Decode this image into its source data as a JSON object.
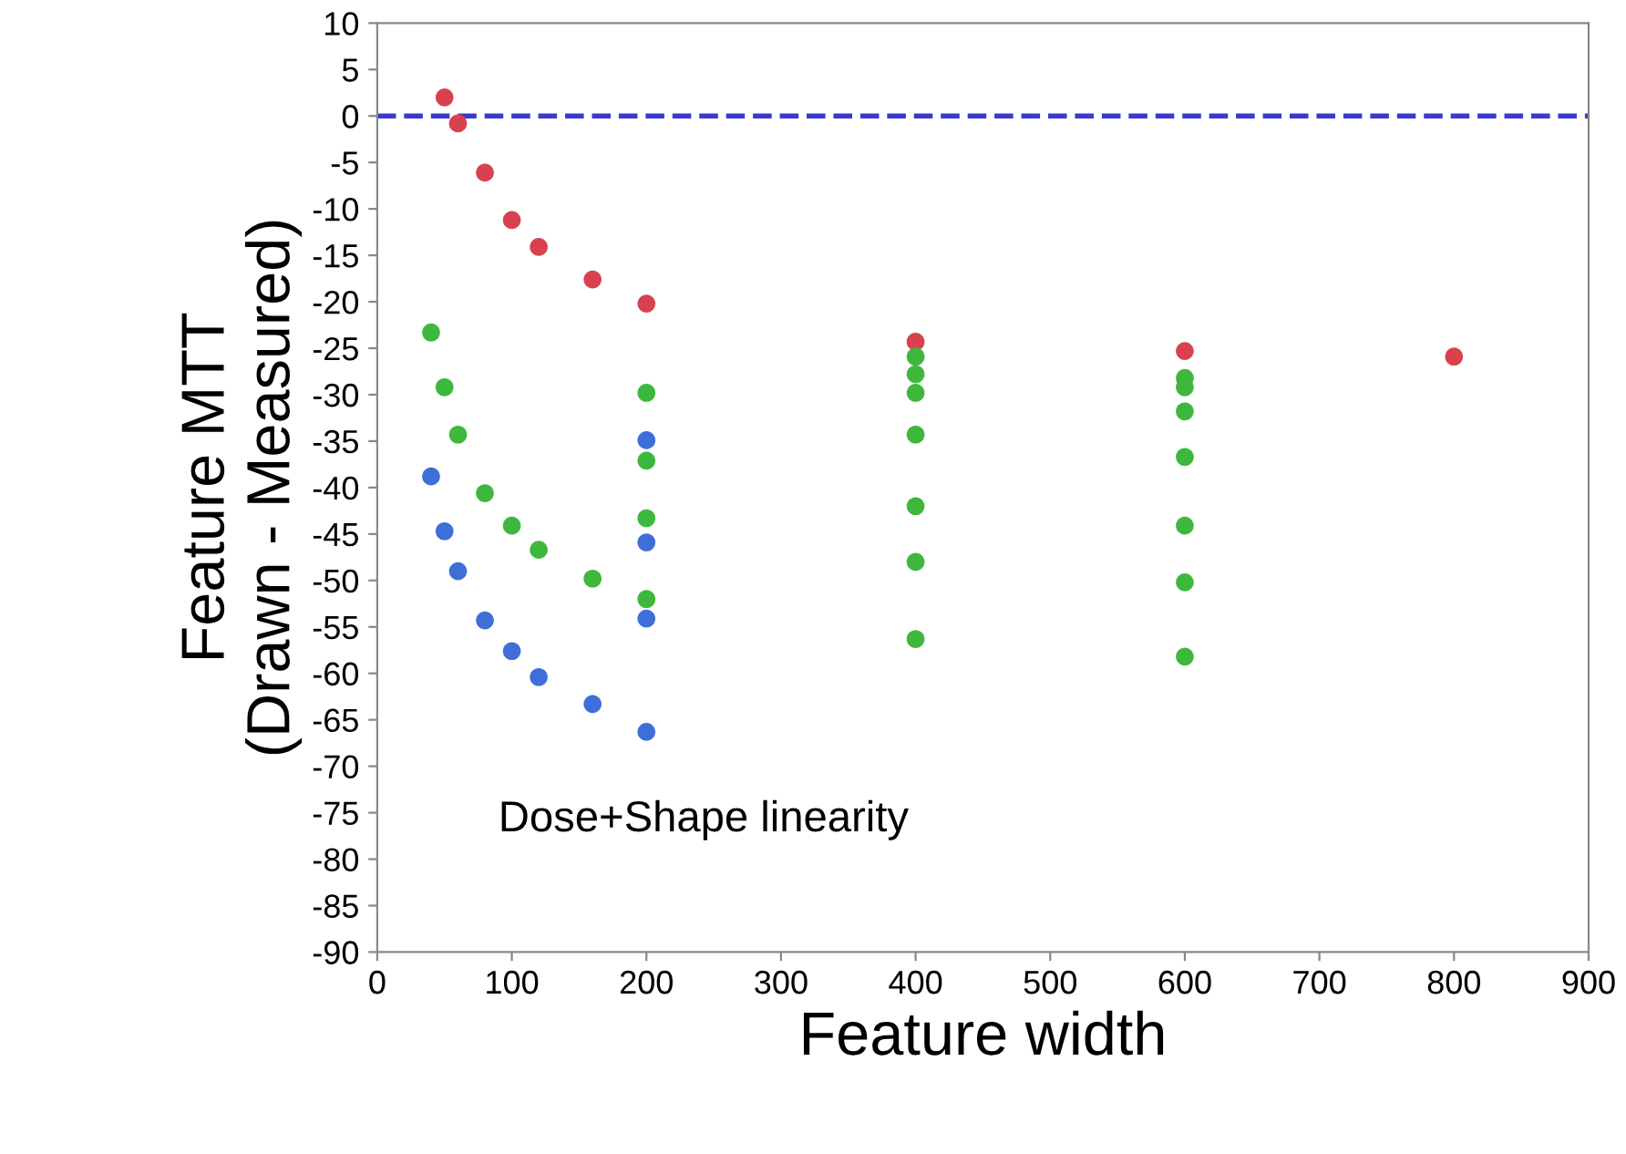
{
  "chart_data": {
    "type": "scatter",
    "xlabel": "Feature width",
    "ylabel": "Feature MTT\n(Drawn - Measured)",
    "series": [
      {
        "color": "#d9414f",
        "x": [
          50,
          60,
          80,
          100,
          120,
          160,
          200,
          400,
          600,
          800
        ],
        "values": [
          2,
          -0.8,
          -6.1,
          -11.2,
          -14.1,
          -17.6,
          -20.2,
          -24.3,
          -25.3,
          -25.9
        ]
      },
      {
        "color": "#3db83d",
        "x": [
          40,
          50,
          60,
          80,
          100,
          120,
          160,
          200,
          200,
          200,
          200,
          400,
          400,
          400,
          400,
          400,
          400,
          400,
          600,
          600,
          600,
          600,
          600,
          600,
          600
        ],
        "values": [
          -23.3,
          -29.2,
          -34.3,
          -40.6,
          -44.1,
          -46.7,
          -49.8,
          -29.8,
          -37.1,
          -43.3,
          -52,
          -25.9,
          -27.8,
          -29.8,
          -34.3,
          -42,
          -48,
          -56.3,
          -28.2,
          -29.2,
          -31.8,
          -36.7,
          -44.1,
          -50.2,
          -58.2
        ]
      },
      {
        "color": "#3e6fd8",
        "x": [
          40,
          50,
          60,
          80,
          100,
          120,
          160,
          200,
          200,
          200,
          200
        ],
        "values": [
          -38.8,
          -44.7,
          -49,
          -54.3,
          -57.6,
          -60.4,
          -63.3,
          -34.9,
          -45.9,
          -54.1,
          -66.3
        ]
      }
    ],
    "xlim": [
      0,
      900
    ],
    "xticks": [
      0,
      100,
      200,
      300,
      400,
      500,
      600,
      700,
      800,
      900
    ],
    "ylim": [
      -90,
      10
    ],
    "yticks": [
      -90,
      -85,
      -80,
      -75,
      -70,
      -65,
      -60,
      -55,
      -50,
      -45,
      -40,
      -35,
      -30,
      -25,
      -20,
      -15,
      -10,
      -5,
      0,
      5,
      10
    ],
    "ref_lines": [
      {
        "axis": "y",
        "value": 0,
        "color": "#3a3acf",
        "line_style": "dashed"
      }
    ],
    "annotations": [
      "Dose+Shape linearity"
    ],
    "marker": "circle",
    "grid": false,
    "legend": false
  }
}
